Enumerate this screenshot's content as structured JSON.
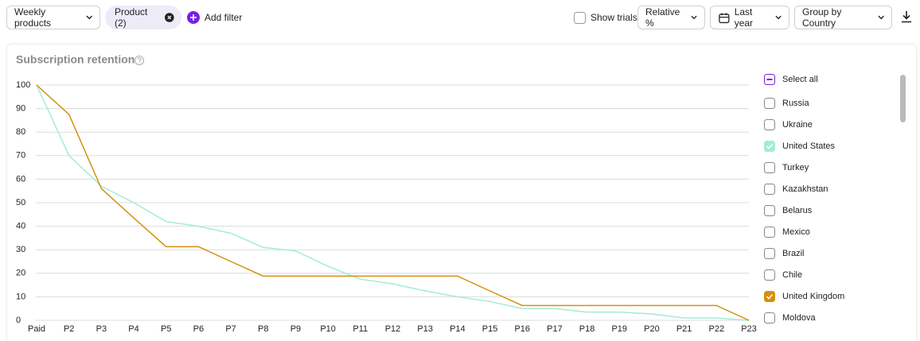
{
  "toolbar": {
    "product_select": "Weekly products",
    "filter_chip": "Product (2)",
    "add_filter": "Add filter",
    "show_trials": "Show trials",
    "relative": "Relative %",
    "period": "Last year",
    "group_by": "Group by Country"
  },
  "legend": {
    "select_all": "Select all"
  },
  "chart_data": {
    "type": "line",
    "title": "Subscription retention",
    "categories": [
      "Paid",
      "P2",
      "P3",
      "P4",
      "P5",
      "P6",
      "P7",
      "P8",
      "P9",
      "P10",
      "P11",
      "P12",
      "P13",
      "P14",
      "P15",
      "P16",
      "P17",
      "P18",
      "P19",
      "P20",
      "P21",
      "P22",
      "P23"
    ],
    "ylim": [
      0,
      100
    ],
    "yticks": [
      0,
      10,
      20,
      30,
      40,
      50,
      60,
      70,
      80,
      90,
      100
    ],
    "grid": true,
    "series": [
      {
        "name": "Russia"
      },
      {
        "name": "Ukraine"
      },
      {
        "name": "United States",
        "color": "#a3ecd6",
        "checked": true,
        "values": [
          100,
          70,
          57,
          50,
          42,
          40,
          37,
          31,
          29.5,
          23,
          17.5,
          15.5,
          12.5,
          10,
          8,
          5,
          5,
          3.5,
          3.5,
          2.7,
          1,
          1,
          0
        ]
      },
      {
        "name": "Turkey"
      },
      {
        "name": "Kazakhstan"
      },
      {
        "name": "Belarus"
      },
      {
        "name": "Mexico"
      },
      {
        "name": "Brazil"
      },
      {
        "name": "Chile"
      },
      {
        "name": "United Kingdom",
        "color": "#d4900e",
        "checked": true,
        "values": [
          100,
          87.5,
          56,
          43.5,
          31.3,
          31.3,
          25,
          18.8,
          18.8,
          18.8,
          18.8,
          18.8,
          18.8,
          18.8,
          12.5,
          6.3,
          6.3,
          6.3,
          6.3,
          6.3,
          6.3,
          6.3,
          0
        ]
      },
      {
        "name": "Moldova"
      }
    ]
  }
}
